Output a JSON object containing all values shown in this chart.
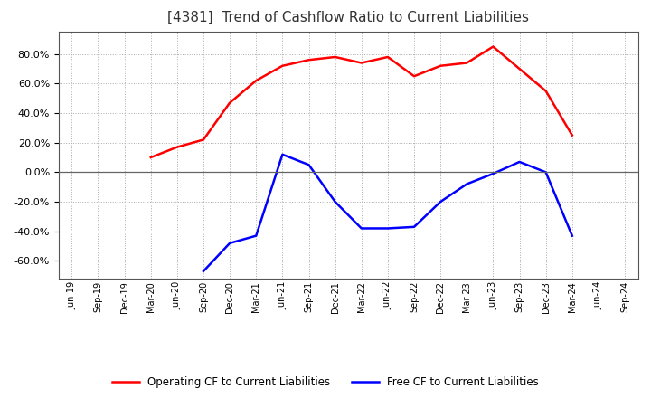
{
  "title": "[4381]  Trend of Cashflow Ratio to Current Liabilities",
  "x_labels": [
    "Jun-19",
    "Sep-19",
    "Dec-19",
    "Mar-20",
    "Jun-20",
    "Sep-20",
    "Dec-20",
    "Mar-21",
    "Jun-21",
    "Sep-21",
    "Dec-21",
    "Mar-22",
    "Jun-22",
    "Sep-22",
    "Dec-22",
    "Mar-23",
    "Jun-23",
    "Sep-23",
    "Dec-23",
    "Mar-24",
    "Jun-24",
    "Sep-24"
  ],
  "operating_cf": [
    null,
    null,
    null,
    0.1,
    0.17,
    0.22,
    0.47,
    0.62,
    0.72,
    0.76,
    0.78,
    0.74,
    0.78,
    0.65,
    0.72,
    0.74,
    0.85,
    0.7,
    0.55,
    0.25,
    null,
    null
  ],
  "free_cf": [
    null,
    null,
    null,
    null,
    null,
    -0.67,
    -0.48,
    -0.43,
    0.12,
    0.05,
    -0.2,
    -0.38,
    -0.38,
    -0.37,
    -0.2,
    -0.08,
    -0.01,
    0.07,
    0.0,
    -0.43,
    null,
    null
  ],
  "operating_color": "#ff0000",
  "free_color": "#0000ff",
  "ylim": [
    -0.72,
    0.95
  ],
  "yticks": [
    -0.6,
    -0.4,
    -0.2,
    0.0,
    0.2,
    0.4,
    0.6,
    0.8
  ],
  "background_color": "#ffffff",
  "plot_bg_color": "#ffffff",
  "grid_color": "#aaaaaa",
  "title_fontsize": 11,
  "tick_fontsize": 7,
  "legend_labels": [
    "Operating CF to Current Liabilities",
    "Free CF to Current Liabilities"
  ]
}
